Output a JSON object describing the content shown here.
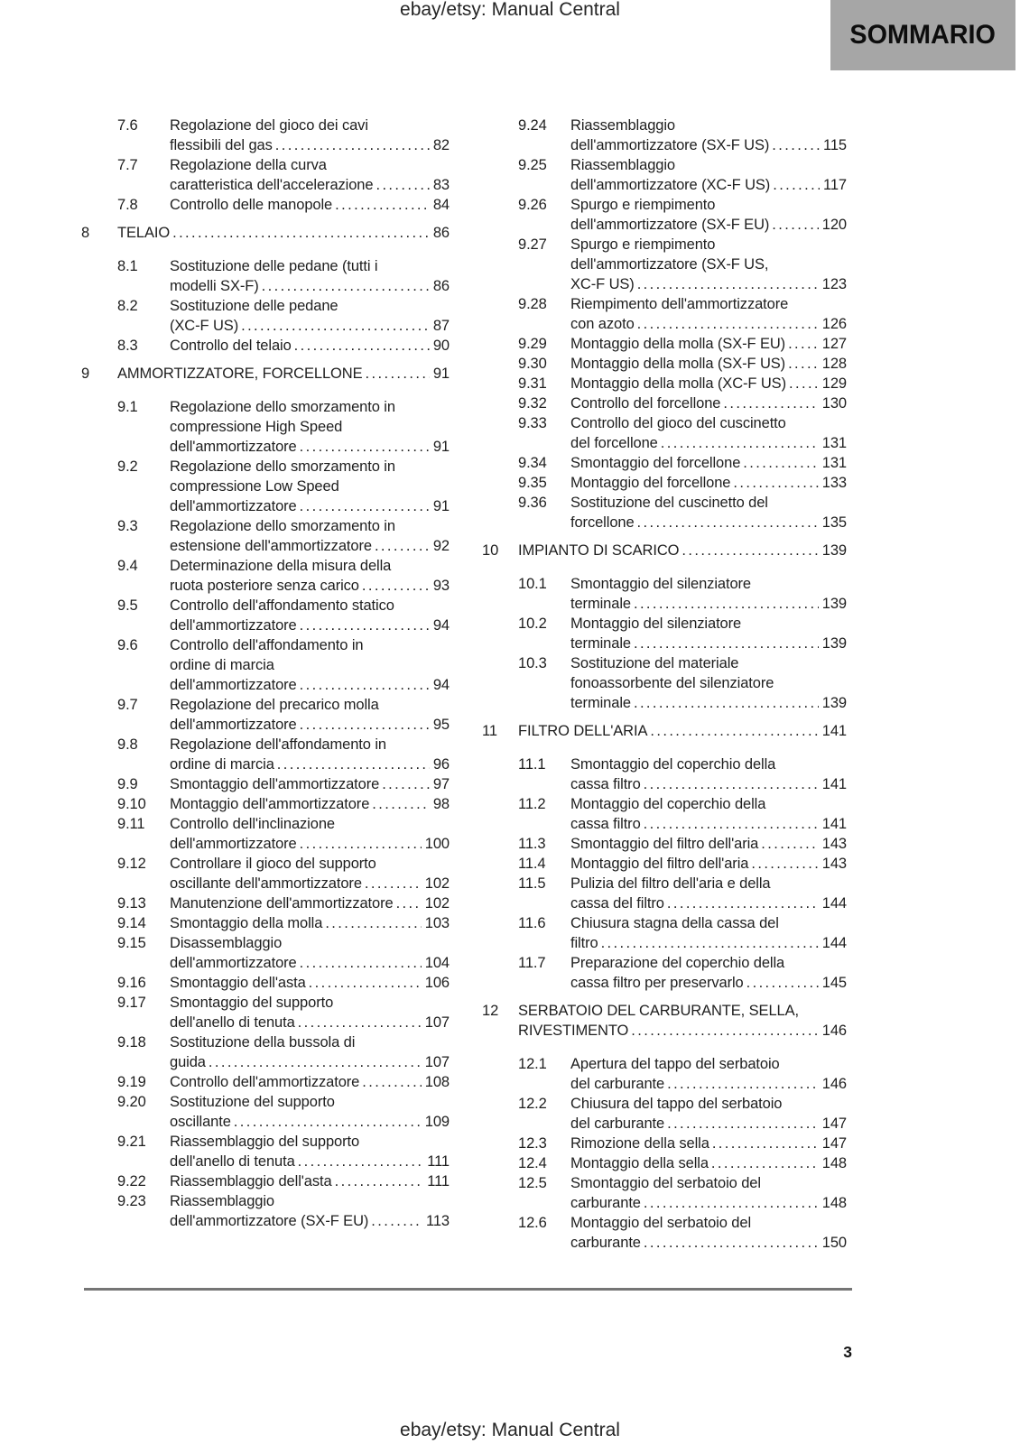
{
  "page": {
    "header_title": "ebay/etsy: Manual Central",
    "tab_label": "SOMMARIO",
    "footer_title": "ebay/etsy: Manual Central",
    "page_number": "3"
  },
  "colors": {
    "tab_bg": "#a6a6a6",
    "text": "#1e1e1e",
    "rule": "#757575",
    "page_bg": "#ffffff"
  },
  "toc": {
    "left": [
      {
        "type": "section",
        "num": "7.6",
        "lines": [
          "Regolazione del gioco dei cavi",
          "flessibili del gas"
        ],
        "page": "82"
      },
      {
        "type": "section",
        "num": "7.7",
        "lines": [
          "Regolazione della curva",
          "caratteristica dell'accelerazione"
        ],
        "page": "83"
      },
      {
        "type": "section",
        "num": "7.8",
        "lines": [
          "Controllo delle manopole"
        ],
        "page": "84"
      },
      {
        "type": "chapter",
        "num": "8",
        "lines": [
          "TELAIO"
        ],
        "page": "86"
      },
      {
        "type": "section",
        "num": "8.1",
        "lines": [
          "Sostituzione delle pedane (tutti i",
          "modelli SX-F)"
        ],
        "page": "86"
      },
      {
        "type": "section",
        "num": "8.2",
        "lines": [
          "Sostituzione delle pedane",
          "(XC-F US)"
        ],
        "page": "87"
      },
      {
        "type": "section",
        "num": "8.3",
        "lines": [
          "Controllo del telaio"
        ],
        "page": "90"
      },
      {
        "type": "chapter",
        "num": "9",
        "lines": [
          "AMMORTIZZATORE, FORCELLONE"
        ],
        "page": "91"
      },
      {
        "type": "section",
        "num": "9.1",
        "lines": [
          "Regolazione dello smorzamento in",
          "compressione High Speed",
          "dell'ammortizzatore"
        ],
        "page": "91"
      },
      {
        "type": "section",
        "num": "9.2",
        "lines": [
          "Regolazione dello smorzamento in",
          "compressione Low Speed",
          "dell'ammortizzatore"
        ],
        "page": "91"
      },
      {
        "type": "section",
        "num": "9.3",
        "lines": [
          "Regolazione dello smorzamento in",
          "estensione dell'ammortizzatore"
        ],
        "page": "92"
      },
      {
        "type": "section",
        "num": "9.4",
        "lines": [
          "Determinazione della misura della",
          "ruota posteriore senza carico"
        ],
        "page": "93"
      },
      {
        "type": "section",
        "num": "9.5",
        "lines": [
          "Controllo dell'affondamento statico",
          "dell'ammortizzatore"
        ],
        "page": "94"
      },
      {
        "type": "section",
        "num": "9.6",
        "lines": [
          "Controllo dell'affondamento in",
          "ordine di marcia",
          "dell'ammortizzatore"
        ],
        "page": "94"
      },
      {
        "type": "section",
        "num": "9.7",
        "lines": [
          "Regolazione del precarico molla",
          "dell'ammortizzatore"
        ],
        "page": "95"
      },
      {
        "type": "section",
        "num": "9.8",
        "lines": [
          "Regolazione dell'affondamento in",
          "ordine di marcia"
        ],
        "page": "96"
      },
      {
        "type": "section",
        "num": "9.9",
        "lines": [
          "Smontaggio dell'ammortizzatore"
        ],
        "page": "97"
      },
      {
        "type": "section",
        "num": "9.10",
        "lines": [
          "Montaggio dell'ammortizzatore"
        ],
        "page": "98"
      },
      {
        "type": "section",
        "num": "9.11",
        "lines": [
          "Controllo dell'inclinazione",
          "dell'ammortizzatore"
        ],
        "page": "100"
      },
      {
        "type": "section",
        "num": "9.12",
        "lines": [
          "Controllare il gioco del supporto",
          "oscillante dell'ammortizzatore"
        ],
        "page": "102"
      },
      {
        "type": "section",
        "num": "9.13",
        "lines": [
          "Manutenzione dell'ammortizzatore"
        ],
        "page": "102"
      },
      {
        "type": "section",
        "num": "9.14",
        "lines": [
          "Smontaggio della molla"
        ],
        "page": "103"
      },
      {
        "type": "section",
        "num": "9.15",
        "lines": [
          "Disassemblaggio",
          "dell'ammortizzatore"
        ],
        "page": "104"
      },
      {
        "type": "section",
        "num": "9.16",
        "lines": [
          "Smontaggio dell'asta"
        ],
        "page": "106"
      },
      {
        "type": "section",
        "num": "9.17",
        "lines": [
          "Smontaggio del supporto",
          "dell'anello di tenuta"
        ],
        "page": "107"
      },
      {
        "type": "section",
        "num": "9.18",
        "lines": [
          "Sostituzione della bussola di",
          "guida"
        ],
        "page": "107"
      },
      {
        "type": "section",
        "num": "9.19",
        "lines": [
          "Controllo dell'ammortizzatore"
        ],
        "page": "108"
      },
      {
        "type": "section",
        "num": "9.20",
        "lines": [
          "Sostituzione del supporto",
          "oscillante"
        ],
        "page": "109"
      },
      {
        "type": "section",
        "num": "9.21",
        "lines": [
          "Riassemblaggio del supporto",
          "dell'anello di tenuta"
        ],
        "page": "111"
      },
      {
        "type": "section",
        "num": "9.22",
        "lines": [
          "Riassemblaggio dell'asta"
        ],
        "page": "111"
      },
      {
        "type": "section",
        "num": "9.23",
        "lines": [
          "Riassemblaggio",
          "dell'ammortizzatore (SX-F EU)"
        ],
        "page": "113"
      }
    ],
    "right": [
      {
        "type": "section",
        "num": "9.24",
        "lines": [
          "Riassemblaggio",
          "dell'ammortizzatore (SX-F US)"
        ],
        "page": "115"
      },
      {
        "type": "section",
        "num": "9.25",
        "lines": [
          "Riassemblaggio",
          "dell'ammortizzatore (XC-F US)"
        ],
        "page": "117"
      },
      {
        "type": "section",
        "num": "9.26",
        "lines": [
          "Spurgo e riempimento",
          "dell'ammortizzatore (SX-F EU)"
        ],
        "page": "120"
      },
      {
        "type": "section",
        "num": "9.27",
        "lines": [
          "Spurgo e riempimento",
          "dell'ammortizzatore (SX-F US,",
          "XC-F US)"
        ],
        "page": "123"
      },
      {
        "type": "section",
        "num": "9.28",
        "lines": [
          "Riempimento dell'ammortizzatore",
          "con azoto"
        ],
        "page": "126"
      },
      {
        "type": "section",
        "num": "9.29",
        "lines": [
          "Montaggio della molla (SX-F EU)"
        ],
        "page": "127"
      },
      {
        "type": "section",
        "num": "9.30",
        "lines": [
          "Montaggio della molla (SX-F US)"
        ],
        "page": "128"
      },
      {
        "type": "section",
        "num": "9.31",
        "lines": [
          "Montaggio della molla (XC-F US)"
        ],
        "page": "129"
      },
      {
        "type": "section",
        "num": "9.32",
        "lines": [
          "Controllo del forcellone"
        ],
        "page": "130"
      },
      {
        "type": "section",
        "num": "9.33",
        "lines": [
          "Controllo del gioco del cuscinetto",
          "del forcellone"
        ],
        "page": "131"
      },
      {
        "type": "section",
        "num": "9.34",
        "lines": [
          "Smontaggio del forcellone"
        ],
        "page": "131"
      },
      {
        "type": "section",
        "num": "9.35",
        "lines": [
          "Montaggio del forcellone"
        ],
        "page": "133"
      },
      {
        "type": "section",
        "num": "9.36",
        "lines": [
          "Sostituzione del cuscinetto del",
          "forcellone"
        ],
        "page": "135"
      },
      {
        "type": "chapter",
        "num": "10",
        "lines": [
          "IMPIANTO DI SCARICO"
        ],
        "page": "139"
      },
      {
        "type": "section",
        "num": "10.1",
        "lines": [
          "Smontaggio del silenziatore",
          "terminale"
        ],
        "page": "139"
      },
      {
        "type": "section",
        "num": "10.2",
        "lines": [
          "Montaggio del silenziatore",
          "terminale"
        ],
        "page": "139"
      },
      {
        "type": "section",
        "num": "10.3",
        "lines": [
          "Sostituzione del materiale",
          "fonoassorbente del silenziatore",
          "terminale"
        ],
        "page": "139"
      },
      {
        "type": "chapter",
        "num": "11",
        "lines": [
          "FILTRO DELL'ARIA"
        ],
        "page": "141"
      },
      {
        "type": "section",
        "num": "11.1",
        "lines": [
          "Smontaggio del coperchio della",
          "cassa filtro"
        ],
        "page": "141"
      },
      {
        "type": "section",
        "num": "11.2",
        "lines": [
          "Montaggio del coperchio della",
          "cassa filtro"
        ],
        "page": "141"
      },
      {
        "type": "section",
        "num": "11.3",
        "lines": [
          "Smontaggio del filtro dell'aria"
        ],
        "page": "143"
      },
      {
        "type": "section",
        "num": "11.4",
        "lines": [
          "Montaggio del filtro dell'aria"
        ],
        "page": "143"
      },
      {
        "type": "section",
        "num": "11.5",
        "lines": [
          "Pulizia del filtro dell'aria e della",
          "cassa del filtro"
        ],
        "page": "144"
      },
      {
        "type": "section",
        "num": "11.6",
        "lines": [
          "Chiusura stagna della cassa del",
          "filtro"
        ],
        "page": "144"
      },
      {
        "type": "section",
        "num": "11.7",
        "lines": [
          "Preparazione del coperchio della",
          "cassa filtro per preservarlo"
        ],
        "page": "145"
      },
      {
        "type": "chapter",
        "num": "12",
        "lines": [
          "SERBATOIO DEL CARBURANTE, SELLA,",
          "RIVESTIMENTO"
        ],
        "page": "146"
      },
      {
        "type": "section",
        "num": "12.1",
        "lines": [
          "Apertura del tappo del serbatoio",
          "del carburante"
        ],
        "page": "146"
      },
      {
        "type": "section",
        "num": "12.2",
        "lines": [
          "Chiusura del tappo del serbatoio",
          "del carburante"
        ],
        "page": "147"
      },
      {
        "type": "section",
        "num": "12.3",
        "lines": [
          "Rimozione della sella"
        ],
        "page": "147"
      },
      {
        "type": "section",
        "num": "12.4",
        "lines": [
          "Montaggio della sella"
        ],
        "page": "148"
      },
      {
        "type": "section",
        "num": "12.5",
        "lines": [
          "Smontaggio del serbatoio del",
          "carburante"
        ],
        "page": "148"
      },
      {
        "type": "section",
        "num": "12.6",
        "lines": [
          "Montaggio del serbatoio del",
          "carburante"
        ],
        "page": "150"
      }
    ]
  }
}
